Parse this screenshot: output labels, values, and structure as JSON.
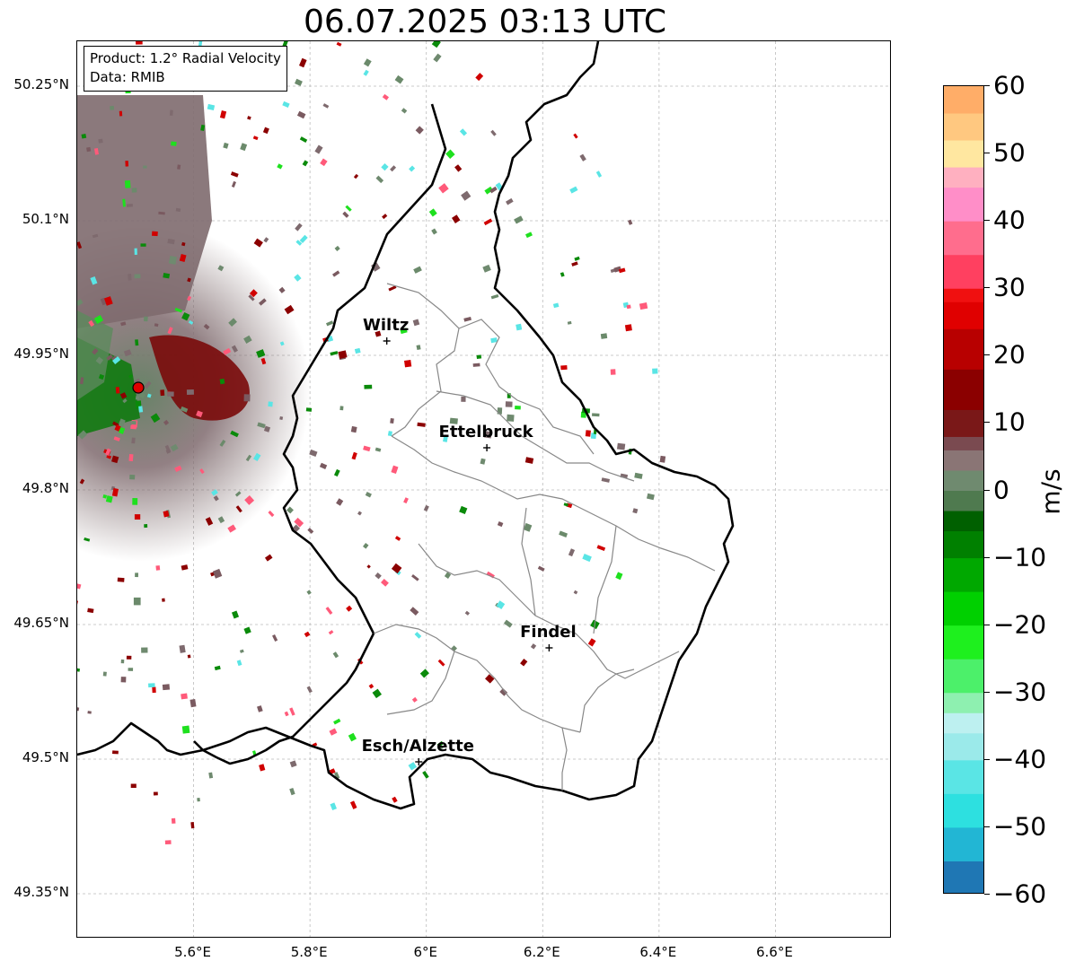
{
  "title": "06.07.2025 03:13 UTC",
  "info": {
    "product": "Product: 1.2° Radial Velocity",
    "source": "Data: RMIB"
  },
  "map": {
    "lon_range": [
      5.4,
      6.8
    ],
    "lat_range": [
      49.3,
      50.3
    ],
    "lat_ticks": [
      "50.25°N",
      "50.1°N",
      "49.95°N",
      "49.8°N",
      "49.65°N",
      "49.5°N",
      "49.35°N"
    ],
    "lon_ticks": [
      "5.6°E",
      "5.8°E",
      "6°E",
      "6.2°E",
      "6.4°E",
      "6.6°E"
    ],
    "lat_values": [
      50.25,
      50.1,
      49.95,
      49.8,
      49.65,
      49.5,
      49.35
    ],
    "lon_values": [
      5.6,
      5.8,
      6.0,
      6.2,
      6.4,
      6.6
    ],
    "grid": true,
    "radar_site": {
      "lon": 5.505,
      "lat": 49.914,
      "color": "#e00000"
    },
    "cities": [
      {
        "name": "Wiltz",
        "lon": 5.932,
        "lat": 49.966
      },
      {
        "name": "Ettelbruck",
        "lon": 6.104,
        "lat": 49.847
      },
      {
        "name": "Findel",
        "lon": 6.211,
        "lat": 49.624
      },
      {
        "name": "Esch/Alzette",
        "lon": 5.987,
        "lat": 49.497
      }
    ]
  },
  "colorbar": {
    "label": "m/s",
    "min": -60,
    "max": 60,
    "ticks": [
      "60",
      "50",
      "40",
      "30",
      "20",
      "10",
      "0",
      "−10",
      "−20",
      "−30",
      "−40",
      "−50",
      "−60"
    ],
    "tick_values": [
      60,
      50,
      40,
      30,
      20,
      10,
      0,
      -10,
      -20,
      -30,
      -40,
      -50,
      -60
    ],
    "stops": [
      {
        "v": -60,
        "color": "#1f77b4"
      },
      {
        "v": -55,
        "color": "#22b6d4"
      },
      {
        "v": -50,
        "color": "#2de0e0"
      },
      {
        "v": -45,
        "color": "#5ae5e5"
      },
      {
        "v": -40,
        "color": "#9beaea"
      },
      {
        "v": -36,
        "color": "#bdf0f0"
      },
      {
        "v": -33,
        "color": "#8ef0b0"
      },
      {
        "v": -30,
        "color": "#4cf06a"
      },
      {
        "v": -25,
        "color": "#1ef01e"
      },
      {
        "v": -20,
        "color": "#00d000"
      },
      {
        "v": -15,
        "color": "#00a800"
      },
      {
        "v": -10,
        "color": "#008000"
      },
      {
        "v": -6,
        "color": "#006000"
      },
      {
        "v": -3,
        "color": "#4f7a4f"
      },
      {
        "v": 0,
        "color": "#6f8a6f"
      },
      {
        "v": 3,
        "color": "#8a7575"
      },
      {
        "v": 6,
        "color": "#7a4a50"
      },
      {
        "v": 8,
        "color": "#7a1818"
      },
      {
        "v": 12,
        "color": "#8b0000"
      },
      {
        "v": 18,
        "color": "#b80000"
      },
      {
        "v": 24,
        "color": "#e00000"
      },
      {
        "v": 28,
        "color": "#f01010"
      },
      {
        "v": 30,
        "color": "#ff4060"
      },
      {
        "v": 35,
        "color": "#ff6d8d"
      },
      {
        "v": 40,
        "color": "#ff8ec8"
      },
      {
        "v": 45,
        "color": "#ffb0c0"
      },
      {
        "v": 48,
        "color": "#ffe7a0"
      },
      {
        "v": 52,
        "color": "#ffc880"
      },
      {
        "v": 56,
        "color": "#ffad68"
      },
      {
        "v": 60,
        "color": "#ff9950"
      }
    ]
  }
}
